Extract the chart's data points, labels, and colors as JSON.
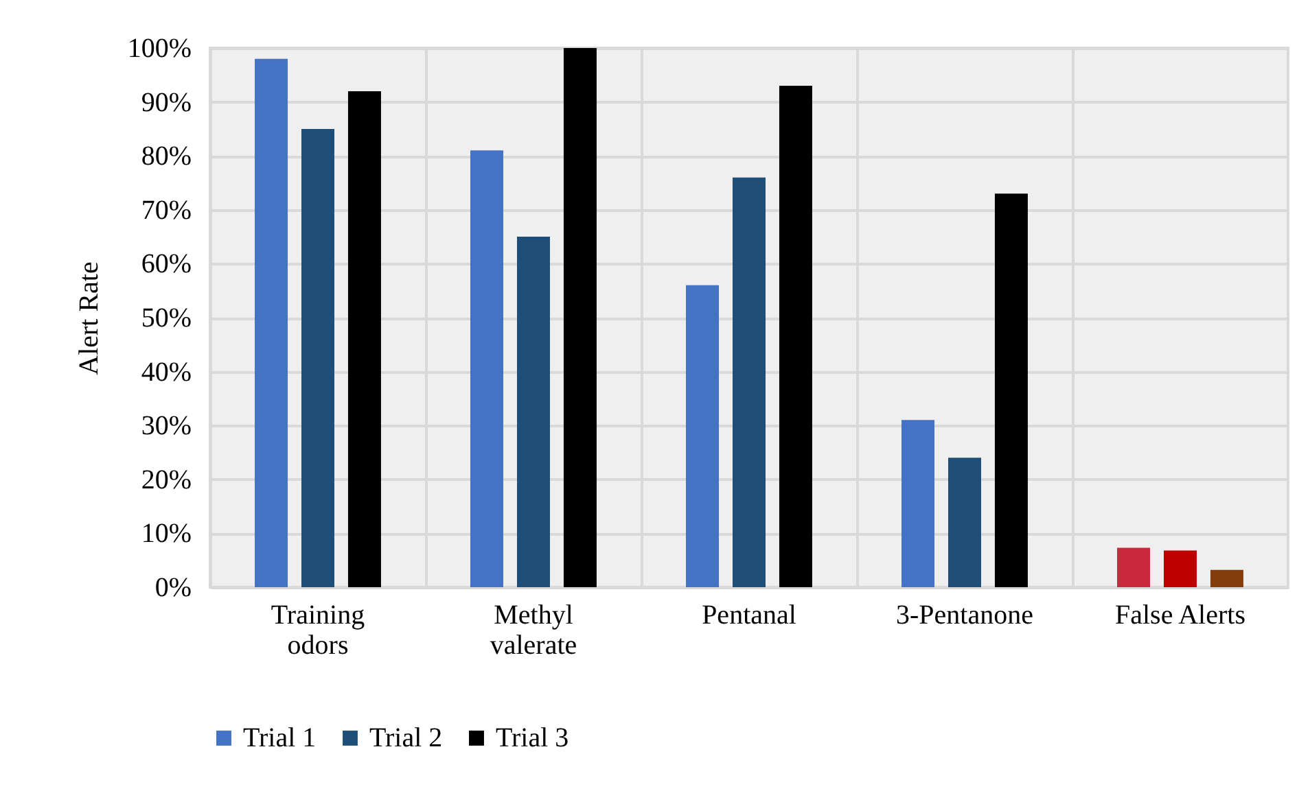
{
  "chart_data": {
    "type": "bar",
    "ylabel": "Alert Rate",
    "categories": [
      "Training odors",
      "Methyl valerate",
      "Pentanal",
      "3-Pentanone",
      "False Alerts"
    ],
    "series": [
      {
        "name": "Trial 1",
        "color": "#4472c4",
        "colors": [
          "#4472c4",
          "#4472c4",
          "#4472c4",
          "#4472c4",
          "#c9283e"
        ],
        "values": [
          98,
          81,
          56,
          31,
          7.3
        ]
      },
      {
        "name": "Trial 2",
        "color": "#1f4e79",
        "colors": [
          "#1f4e79",
          "#1f4e79",
          "#1f4e79",
          "#1f4e79",
          "#c00000"
        ],
        "values": [
          85,
          65,
          76,
          24,
          6.8
        ]
      },
      {
        "name": "Trial 3",
        "color": "#000000",
        "colors": [
          "#000000",
          "#000000",
          "#000000",
          "#000000",
          "#843c0c"
        ],
        "values": [
          92,
          100,
          93,
          73,
          3.2
        ]
      }
    ],
    "ylim": [
      0,
      100
    ],
    "yticks": [
      {
        "value": 0,
        "label": "0%"
      },
      {
        "value": 10,
        "label": "10%"
      },
      {
        "value": 20,
        "label": "20%"
      },
      {
        "value": 30,
        "label": "30%"
      },
      {
        "value": 40,
        "label": "40%"
      },
      {
        "value": 50,
        "label": "50%"
      },
      {
        "value": 60,
        "label": "60%"
      },
      {
        "value": 70,
        "label": "70%"
      },
      {
        "value": 80,
        "label": "80%"
      },
      {
        "value": 90,
        "label": "90%"
      },
      {
        "value": 100,
        "label": "100%"
      }
    ],
    "grid": true,
    "legend": "bottom"
  }
}
